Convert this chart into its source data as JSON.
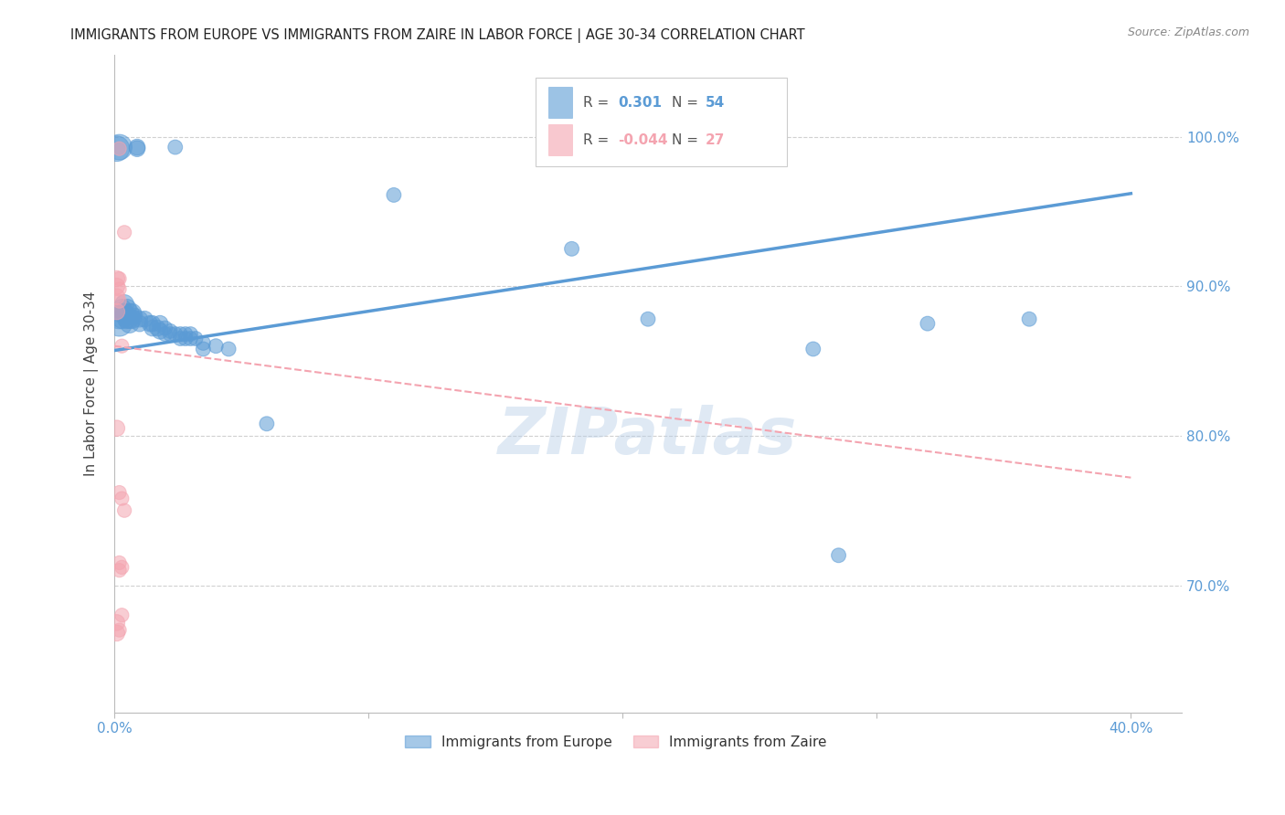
{
  "title": "IMMIGRANTS FROM EUROPE VS IMMIGRANTS FROM ZAIRE IN LABOR FORCE | AGE 30-34 CORRELATION CHART",
  "source": "Source: ZipAtlas.com",
  "ylabel": "In Labor Force | Age 30-34",
  "y_ticks": [
    0.7,
    0.8,
    0.9,
    1.0
  ],
  "y_tick_labels": [
    "70.0%",
    "80.0%",
    "90.0%",
    "100.0%"
  ],
  "x_ticks": [
    0.0,
    0.1,
    0.2,
    0.3,
    0.4
  ],
  "x_tick_labels": [
    "0.0%",
    "",
    "",
    "",
    "40.0%"
  ],
  "x_range": [
    0.0,
    0.42
  ],
  "y_range": [
    0.615,
    1.055
  ],
  "watermark": "ZIPatlas",
  "blue_color": "#5b9bd5",
  "pink_color": "#f4a4b0",
  "blue_dots": [
    [
      0.001,
      0.992
    ],
    [
      0.002,
      0.993
    ],
    [
      0.009,
      0.993
    ],
    [
      0.009,
      0.992
    ],
    [
      0.024,
      0.993
    ],
    [
      0.11,
      0.961
    ],
    [
      0.002,
      0.88
    ],
    [
      0.002,
      0.875
    ],
    [
      0.003,
      0.885
    ],
    [
      0.003,
      0.882
    ],
    [
      0.003,
      0.878
    ],
    [
      0.004,
      0.888
    ],
    [
      0.004,
      0.882
    ],
    [
      0.005,
      0.885
    ],
    [
      0.005,
      0.88
    ],
    [
      0.005,
      0.878
    ],
    [
      0.006,
      0.882
    ],
    [
      0.006,
      0.878
    ],
    [
      0.006,
      0.875
    ],
    [
      0.007,
      0.882
    ],
    [
      0.007,
      0.878
    ],
    [
      0.008,
      0.88
    ],
    [
      0.01,
      0.878
    ],
    [
      0.01,
      0.875
    ],
    [
      0.012,
      0.878
    ],
    [
      0.014,
      0.875
    ],
    [
      0.015,
      0.875
    ],
    [
      0.015,
      0.872
    ],
    [
      0.017,
      0.872
    ],
    [
      0.018,
      0.875
    ],
    [
      0.018,
      0.87
    ],
    [
      0.02,
      0.872
    ],
    [
      0.02,
      0.868
    ],
    [
      0.022,
      0.87
    ],
    [
      0.022,
      0.868
    ],
    [
      0.024,
      0.868
    ],
    [
      0.026,
      0.868
    ],
    [
      0.026,
      0.865
    ],
    [
      0.028,
      0.868
    ],
    [
      0.028,
      0.865
    ],
    [
      0.03,
      0.868
    ],
    [
      0.03,
      0.865
    ],
    [
      0.032,
      0.865
    ],
    [
      0.035,
      0.862
    ],
    [
      0.035,
      0.858
    ],
    [
      0.04,
      0.86
    ],
    [
      0.045,
      0.858
    ],
    [
      0.06,
      0.808
    ],
    [
      0.18,
      0.925
    ],
    [
      0.21,
      0.878
    ],
    [
      0.275,
      0.858
    ],
    [
      0.285,
      0.72
    ],
    [
      0.32,
      0.875
    ],
    [
      0.36,
      0.878
    ]
  ],
  "pink_dots": [
    [
      0.002,
      0.992
    ],
    [
      0.004,
      0.936
    ],
    [
      0.001,
      0.905
    ],
    [
      0.002,
      0.905
    ],
    [
      0.001,
      0.9
    ],
    [
      0.002,
      0.898
    ],
    [
      0.001,
      0.893
    ],
    [
      0.002,
      0.89
    ],
    [
      0.001,
      0.883
    ],
    [
      0.003,
      0.86
    ],
    [
      0.001,
      0.805
    ],
    [
      0.002,
      0.762
    ],
    [
      0.003,
      0.758
    ],
    [
      0.004,
      0.75
    ],
    [
      0.002,
      0.715
    ],
    [
      0.002,
      0.71
    ],
    [
      0.003,
      0.712
    ],
    [
      0.003,
      0.68
    ],
    [
      0.002,
      0.67
    ],
    [
      0.001,
      0.675
    ],
    [
      0.001,
      0.668
    ]
  ],
  "blue_line": [
    [
      0.0,
      0.857
    ],
    [
      0.4,
      0.962
    ]
  ],
  "pink_line": [
    [
      0.0,
      0.86
    ],
    [
      0.4,
      0.772
    ]
  ],
  "dot_alpha": 0.55,
  "grid_color": "#d0d0d0",
  "grid_style": "--",
  "background_color": "#ffffff",
  "title_fontsize": 11,
  "tick_label_color": "#5b9bd5"
}
